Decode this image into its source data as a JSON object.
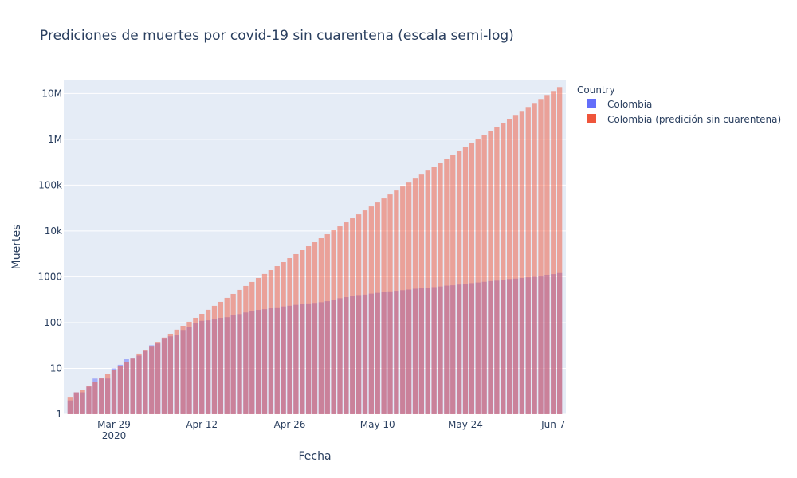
{
  "chart_data": {
    "type": "bar",
    "title": "Prediciones de muertes por covid-19 sin cuarentena (escala semi-log)",
    "xlabel": "Fecha",
    "ylabel": "Muertes",
    "y_scale": "log",
    "ylim": [
      1,
      20000000
    ],
    "xlim": [
      "2020-03-21",
      "2020-06-09"
    ],
    "grid": true,
    "bar_mode": "overlay",
    "x_ticks": [
      {
        "date": "2020-03-29",
        "label": "Mar 29",
        "sublabel": "2020"
      },
      {
        "date": "2020-04-12",
        "label": "Apr 12",
        "sublabel": ""
      },
      {
        "date": "2020-04-26",
        "label": "Apr 26",
        "sublabel": ""
      },
      {
        "date": "2020-05-10",
        "label": "May 10",
        "sublabel": ""
      },
      {
        "date": "2020-05-24",
        "label": "May 24",
        "sublabel": ""
      },
      {
        "date": "2020-06-07",
        "label": "Jun 7",
        "sublabel": ""
      }
    ],
    "y_ticks": [
      {
        "value": 1,
        "label": "1"
      },
      {
        "value": 10,
        "label": "10"
      },
      {
        "value": 100,
        "label": "100"
      },
      {
        "value": 1000,
        "label": "1000"
      },
      {
        "value": 10000,
        "label": "10k"
      },
      {
        "value": 100000,
        "label": "100k"
      },
      {
        "value": 1000000,
        "label": "1M"
      },
      {
        "value": 10000000,
        "label": "10M"
      }
    ],
    "legend": {
      "title": "Country",
      "position": "top-right"
    },
    "x": [
      "2020-03-22",
      "2020-03-23",
      "2020-03-24",
      "2020-03-25",
      "2020-03-26",
      "2020-03-27",
      "2020-03-28",
      "2020-03-29",
      "2020-03-30",
      "2020-03-31",
      "2020-04-01",
      "2020-04-02",
      "2020-04-03",
      "2020-04-04",
      "2020-04-05",
      "2020-04-06",
      "2020-04-07",
      "2020-04-08",
      "2020-04-09",
      "2020-04-10",
      "2020-04-11",
      "2020-04-12",
      "2020-04-13",
      "2020-04-14",
      "2020-04-15",
      "2020-04-16",
      "2020-04-17",
      "2020-04-18",
      "2020-04-19",
      "2020-04-20",
      "2020-04-21",
      "2020-04-22",
      "2020-04-23",
      "2020-04-24",
      "2020-04-25",
      "2020-04-26",
      "2020-04-27",
      "2020-04-28",
      "2020-04-29",
      "2020-04-30",
      "2020-05-01",
      "2020-05-02",
      "2020-05-03",
      "2020-05-04",
      "2020-05-05",
      "2020-05-06",
      "2020-05-07",
      "2020-05-08",
      "2020-05-09",
      "2020-05-10",
      "2020-05-11",
      "2020-05-12",
      "2020-05-13",
      "2020-05-14",
      "2020-05-15",
      "2020-05-16",
      "2020-05-17",
      "2020-05-18",
      "2020-05-19",
      "2020-05-20",
      "2020-05-21",
      "2020-05-22",
      "2020-05-23",
      "2020-05-24",
      "2020-05-25",
      "2020-05-26",
      "2020-05-27",
      "2020-05-28",
      "2020-05-29",
      "2020-05-30",
      "2020-05-31",
      "2020-06-01",
      "2020-06-02",
      "2020-06-03",
      "2020-06-04",
      "2020-06-05",
      "2020-06-06",
      "2020-06-07",
      "2020-06-08"
    ],
    "series": [
      {
        "name": "Colombia",
        "color": "#636efa",
        "values": [
          2,
          3,
          3,
          4,
          6,
          6,
          6,
          10,
          12,
          16,
          17,
          19,
          25,
          32,
          35,
          46,
          50,
          54,
          69,
          80,
          100,
          109,
          112,
          117,
          127,
          131,
          144,
          153,
          166,
          179,
          189,
          196,
          206,
          215,
          225,
          233,
          244,
          253,
          262,
          269,
          278,
          293,
          314,
          340,
          359,
          378,
          398,
          407,
          428,
          445,
          463,
          479,
          493,
          509,
          525,
          548,
          562,
          574,
          593,
          613,
          640,
          652,
          676,
          705,
          727,
          750,
          776,
          803,
          822,
          850,
          890,
          911,
          939,
          970,
          997,
          1045,
          1099,
          1142,
          1205
        ]
      },
      {
        "name": "Colombia (predición sin cuarentena)",
        "color": "#ef553b",
        "values": [
          2.4,
          3,
          3.4,
          4.2,
          5.1,
          6.2,
          7.6,
          9.3,
          11.4,
          14,
          17,
          21,
          25.5,
          31,
          38,
          47,
          57,
          70,
          85,
          104,
          127,
          155,
          190,
          232,
          283,
          346,
          422,
          516,
          630,
          770,
          940,
          1150,
          1400,
          1710,
          2090,
          2550,
          3120,
          3810,
          4650,
          5680,
          6940,
          8470,
          10350,
          12640,
          15430,
          18850,
          23000,
          28100,
          34300,
          41900,
          51200,
          62500,
          76300,
          93200,
          113800,
          139000,
          169700,
          207300,
          253100,
          309100,
          377500,
          461000,
          563000,
          687500,
          839600,
          1025000,
          1252000,
          1529000,
          1867000,
          2280000,
          2784000,
          3400000,
          4152000,
          5071000,
          6193000,
          7562000,
          9235000,
          11280000,
          13770000
        ]
      }
    ]
  }
}
